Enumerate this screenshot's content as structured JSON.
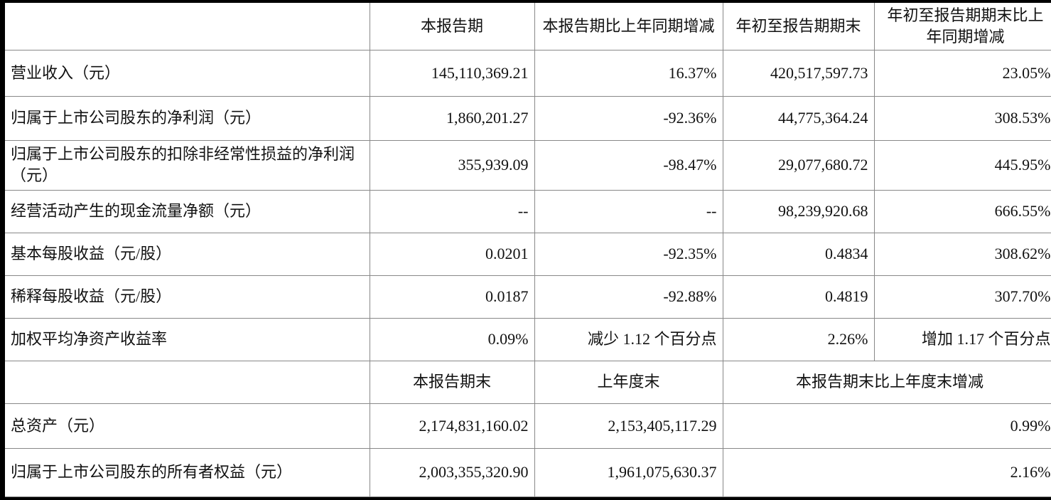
{
  "header": [
    "",
    "本报告期",
    "本报告期比上年同期增减",
    "年初至报告期期末",
    "年初至报告期期末比上年同期增减"
  ],
  "rows": [
    [
      "营业收入（元）",
      "145,110,369.21",
      "16.37%",
      "420,517,597.73",
      "23.05%"
    ],
    [
      "归属于上市公司股东的净利润（元）",
      "1,860,201.27",
      "-92.36%",
      "44,775,364.24",
      "308.53%"
    ],
    [
      "归属于上市公司股东的扣除非经常性损益的净利润（元）",
      "355,939.09",
      "-98.47%",
      "29,077,680.72",
      "445.95%"
    ],
    [
      "经营活动产生的现金流量净额（元）",
      "--",
      "--",
      "98,239,920.68",
      "666.55%"
    ],
    [
      "基本每股收益（元/股）",
      "0.0201",
      "-92.35%",
      "0.4834",
      "308.62%"
    ],
    [
      "稀释每股收益（元/股）",
      "0.0187",
      "-92.88%",
      "0.4819",
      "307.70%"
    ],
    [
      "加权平均净资产收益率",
      "0.09%",
      "减少 1.12 个百分点",
      "2.26%",
      "增加 1.17 个百分点"
    ]
  ],
  "header2": [
    "",
    "本报告期末",
    "上年度末",
    "本报告期末比上年度末增减"
  ],
  "rows2": [
    [
      "总资产（元）",
      "2,174,831,160.02",
      "2,153,405,117.29",
      "0.99%"
    ],
    [
      "归属于上市公司股东的所有者权益（元）",
      "2,003,355,320.90",
      "1,961,075,630.37",
      "2.16%"
    ]
  ]
}
